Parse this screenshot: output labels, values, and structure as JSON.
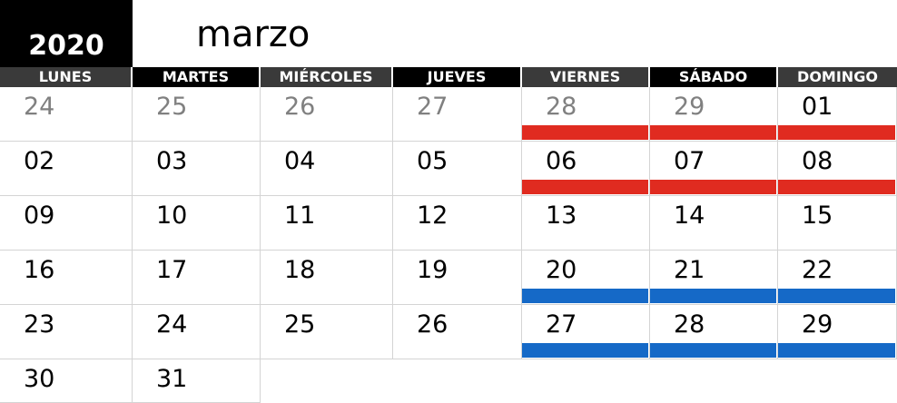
{
  "year": "2020",
  "month": "marzo",
  "colors": {
    "red": "#e02b20",
    "blue": "#1569c7",
    "header_dark": "#000000",
    "header_grey": "#3a3a3a"
  },
  "days": [
    "LUNES",
    "MARTES",
    "MIÉRCOLES",
    "JUEVES",
    "VIERNES",
    "SÁBADO",
    "DOMINGO"
  ],
  "weeks": [
    [
      {
        "n": "24",
        "muted": true
      },
      {
        "n": "25",
        "muted": true
      },
      {
        "n": "26",
        "muted": true
      },
      {
        "n": "27",
        "muted": true
      },
      {
        "n": "28",
        "muted": true,
        "bar": "red"
      },
      {
        "n": "29",
        "muted": true,
        "bar": "red"
      },
      {
        "n": "01",
        "bar": "red"
      }
    ],
    [
      {
        "n": "02"
      },
      {
        "n": "03"
      },
      {
        "n": "04"
      },
      {
        "n": "05"
      },
      {
        "n": "06",
        "bar": "red"
      },
      {
        "n": "07",
        "bar": "red"
      },
      {
        "n": "08",
        "bar": "red"
      }
    ],
    [
      {
        "n": "09"
      },
      {
        "n": "10"
      },
      {
        "n": "11"
      },
      {
        "n": "12"
      },
      {
        "n": "13"
      },
      {
        "n": "14"
      },
      {
        "n": "15"
      }
    ],
    [
      {
        "n": "16"
      },
      {
        "n": "17"
      },
      {
        "n": "18"
      },
      {
        "n": "19"
      },
      {
        "n": "20",
        "bar": "blue"
      },
      {
        "n": "21",
        "bar": "blue"
      },
      {
        "n": "22",
        "bar": "blue"
      }
    ],
    [
      {
        "n": "23"
      },
      {
        "n": "24"
      },
      {
        "n": "25"
      },
      {
        "n": "26"
      },
      {
        "n": "27",
        "bar": "blue"
      },
      {
        "n": "28",
        "bar": "blue"
      },
      {
        "n": "29",
        "bar": "blue"
      }
    ],
    [
      {
        "n": "30"
      },
      {
        "n": "31"
      },
      null,
      null,
      null,
      null,
      null
    ]
  ]
}
